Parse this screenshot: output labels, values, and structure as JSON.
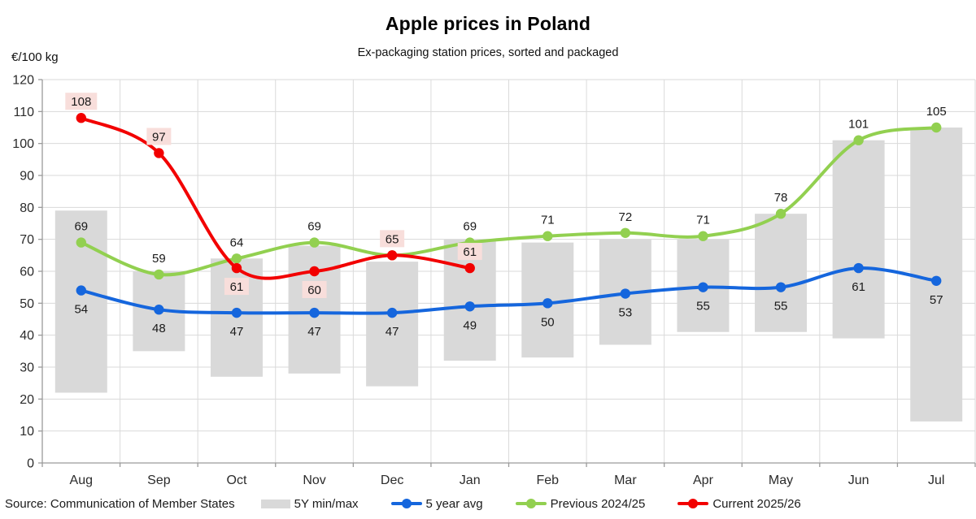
{
  "title": "Apple prices in Poland",
  "subtitle": "Ex-packaging station prices, sorted and packaged",
  "unit_label": "€/100 kg",
  "source": "Source: Communication of Member States",
  "colors": {
    "range_fill": "#d9d9d9",
    "avg_line": "#1566dd",
    "previous_line": "#92d050",
    "current_line": "#f20000",
    "current_label_bg": "#f8dedb",
    "gridline": "#dadada",
    "axis": "#9a9a9a",
    "label_text": "#1a1a1a"
  },
  "legend": [
    {
      "label": "5Y min/max",
      "type": "range",
      "color": "#d9d9d9"
    },
    {
      "label": "5 year avg",
      "type": "line",
      "color": "#1566dd"
    },
    {
      "label": "Previous 2024/25",
      "type": "line",
      "color": "#92d050"
    },
    {
      "label": "Current 2025/26",
      "type": "line",
      "color": "#f20000"
    }
  ],
  "chart_data": {
    "type": "line",
    "title": "Apple prices in Poland",
    "subtitle": "Ex-packaging station prices, sorted and packaged",
    "ylabel": "€/100 kg",
    "categories": [
      "Aug",
      "Sep",
      "Oct",
      "Nov",
      "Dec",
      "Jan",
      "Feb",
      "Mar",
      "Apr",
      "May",
      "Jun",
      "Jul"
    ],
    "y_axis": {
      "min": 0,
      "max": 120,
      "step": 10
    },
    "gridlines": true,
    "legend_position": "bottom",
    "range_series": {
      "name": "5Y min/max",
      "color": "#d9d9d9",
      "min": [
        22,
        35,
        27,
        28,
        24,
        32,
        33,
        37,
        41,
        41,
        39,
        13
      ],
      "max": [
        79,
        60,
        64,
        68,
        63,
        70,
        69,
        70,
        70,
        78,
        101,
        105
      ]
    },
    "series": [
      {
        "name": "5 year avg",
        "color": "#1566dd",
        "values": [
          54,
          48,
          47,
          47,
          47,
          49,
          50,
          53,
          55,
          55,
          61,
          57
        ],
        "labels": [
          "54",
          "48",
          "47",
          "47",
          "47",
          "49",
          "50",
          "53",
          "55",
          "55",
          "61",
          "57"
        ],
        "label_pos": [
          "below",
          "below",
          "below",
          "below",
          "below",
          "below",
          "below",
          "below",
          "below",
          "below",
          "below",
          "below"
        ],
        "label_bg": false
      },
      {
        "name": "Previous 2024/25",
        "color": "#92d050",
        "values": [
          69,
          59,
          64,
          69,
          65,
          69,
          71,
          72,
          71,
          78,
          101,
          105
        ],
        "labels": [
          "69",
          "59",
          "64",
          "69",
          "",
          "69",
          "71",
          "72",
          "71",
          "78",
          "101",
          "105"
        ],
        "label_pos": [
          "above",
          "above",
          "above",
          "above",
          "above",
          "above",
          "above",
          "above",
          "above",
          "above",
          "above",
          "above"
        ],
        "label_bg": false
      },
      {
        "name": "Current 2025/26",
        "color": "#f20000",
        "values": [
          108,
          97,
          61,
          60,
          65,
          61,
          null,
          null,
          null,
          null,
          null,
          null
        ],
        "labels": [
          "108",
          "97",
          "61",
          "60",
          "65",
          "61"
        ],
        "label_pos": [
          "above",
          "above",
          "below",
          "below",
          "above",
          "above"
        ],
        "label_bg": true,
        "label_bg_color": "#f8dedb"
      }
    ]
  }
}
